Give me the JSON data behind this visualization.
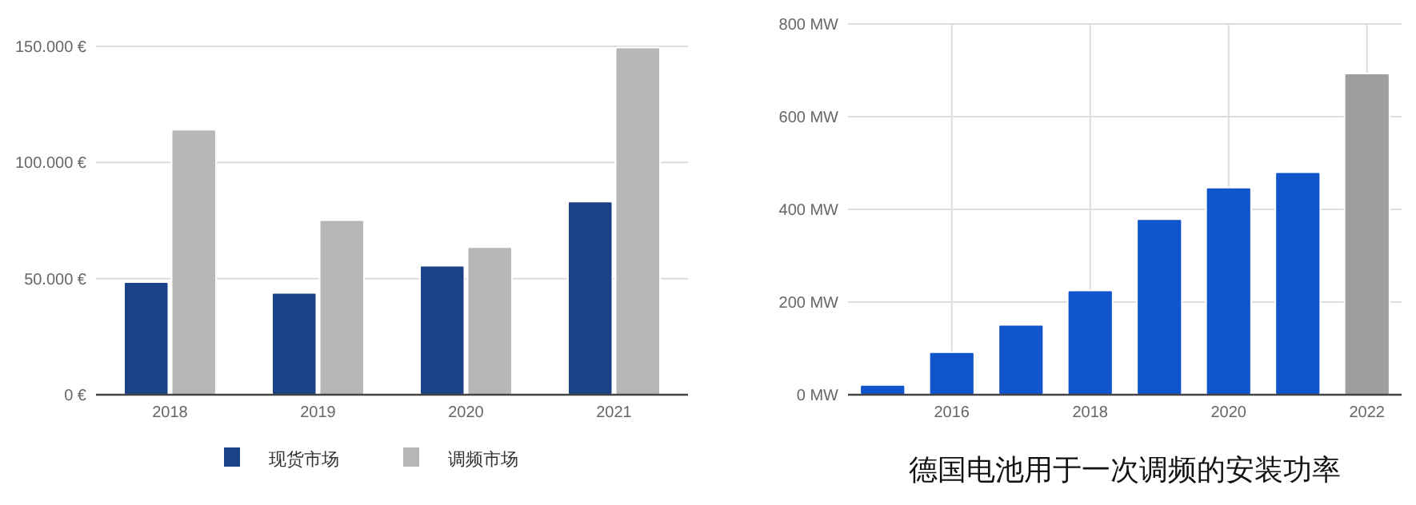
{
  "chart_data": [
    {
      "type": "bar",
      "categories": [
        "2018",
        "2019",
        "2020",
        "2021"
      ],
      "series": [
        {
          "name": "现货市场",
          "color": "#1b4286",
          "values": [
            48500,
            43900,
            55600,
            83200
          ]
        },
        {
          "name": "调频市场",
          "color": "#b7b7b7",
          "values": [
            114100,
            75200,
            63600,
            149500
          ]
        }
      ],
      "ylim": [
        0,
        150000
      ],
      "yticks": [
        {
          "value": 0,
          "label": "0 €"
        },
        {
          "value": 50000,
          "label": "50.000 €"
        },
        {
          "value": 100000,
          "label": "100.000 €"
        },
        {
          "value": 150000,
          "label": "150.000 €"
        }
      ],
      "grid": "y",
      "legend": "bottom"
    },
    {
      "type": "bar",
      "title": "德国电池用于一次调频的安装功率",
      "x": [
        2015,
        2016,
        2017,
        2018,
        2019,
        2020,
        2021,
        2022
      ],
      "values": [
        21,
        92,
        151,
        225,
        379,
        447,
        480,
        693
      ],
      "colors": [
        "#1155cc",
        "#1155cc",
        "#1155cc",
        "#1155cc",
        "#1155cc",
        "#1155cc",
        "#1155cc",
        "#9e9e9e"
      ],
      "xlim": [
        2014.5,
        2022.5
      ],
      "xticks": [
        2016,
        2018,
        2020,
        2022
      ],
      "ylim": [
        0,
        800
      ],
      "yticks": [
        {
          "value": 0,
          "label": "0 MW"
        },
        {
          "value": 200,
          "label": "200 MW"
        },
        {
          "value": 400,
          "label": "400 MW"
        },
        {
          "value": 600,
          "label": "600 MW"
        },
        {
          "value": 800,
          "label": "800 MW"
        }
      ],
      "grid": true
    }
  ]
}
